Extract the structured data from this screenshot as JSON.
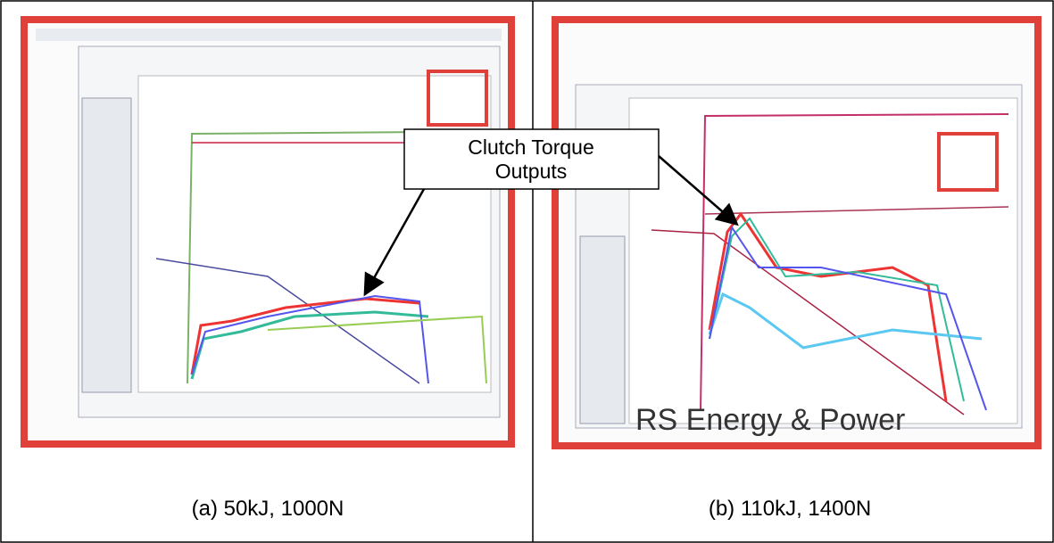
{
  "panels": [
    {
      "caption": "(a) 50kJ, 1000N"
    },
    {
      "caption": "(b) 110kJ, 1400N",
      "watermark": "RS Energy & Power"
    }
  ],
  "callout": {
    "lines": [
      "Clutch Torque",
      "Outputs"
    ]
  }
}
